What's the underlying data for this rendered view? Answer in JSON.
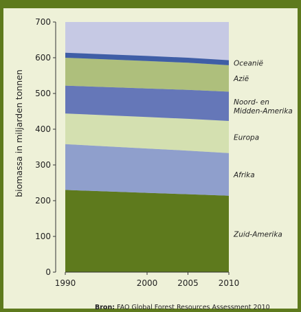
{
  "chart_data": {
    "type": "area",
    "stacked": true,
    "x": [
      1990,
      2000,
      2005,
      2010
    ],
    "ylabel": "biomassa in miljarden tonnen",
    "xlabel": "",
    "title": "",
    "ylim": [
      0,
      700
    ],
    "yticks": [
      0,
      100,
      200,
      300,
      400,
      500,
      600,
      700
    ],
    "xticks": [
      1990,
      2000,
      2005,
      2010
    ],
    "legend": "right",
    "series": [
      {
        "name": "Zuid-Amerika",
        "color": "#5e7a1d",
        "values": [
          230,
          222,
          218,
          214
        ]
      },
      {
        "name": "Afrika",
        "color": "#8f9fcc",
        "values": [
          128,
          124,
          122,
          119
        ]
      },
      {
        "name": "Europa",
        "color": "#d4e0b0",
        "values": [
          86,
          88,
          89,
          90
        ]
      },
      {
        "name": "Noord- en Midden-Amerika",
        "color": "#6577b8",
        "values": [
          78,
          80,
          81,
          82
        ]
      },
      {
        "name": "Azië",
        "color": "#aebf7c",
        "values": [
          78,
          77,
          76,
          74
        ]
      },
      {
        "name": "Oceanië",
        "color": "#3f5ea6",
        "values": [
          14,
          14,
          14,
          14
        ]
      }
    ]
  },
  "plot_background": "#c6c9e4",
  "source": {
    "label": "Bron:",
    "text": "FAO Global Forest Resources Assessment 2010"
  }
}
